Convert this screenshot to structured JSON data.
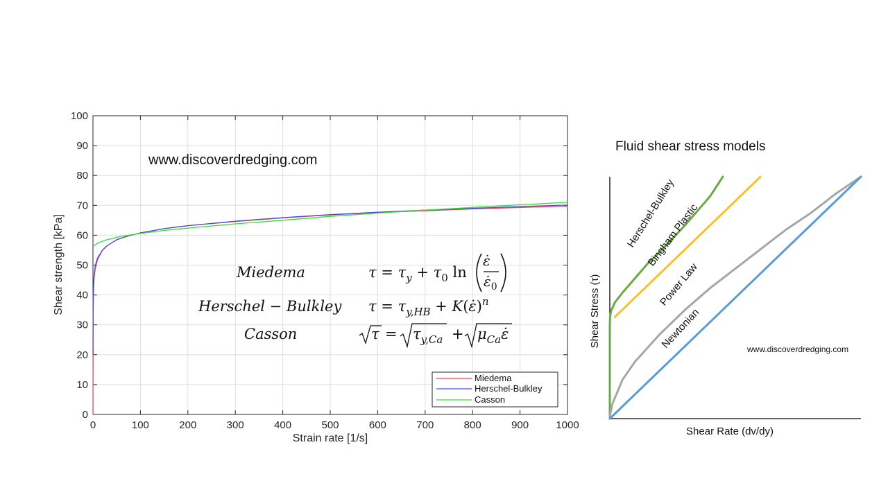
{
  "chart_data": [
    {
      "type": "line",
      "title": "",
      "xlabel": "Strain rate [1/s]",
      "ylabel": "Shear strength [kPa]",
      "xlim": [
        0,
        1000
      ],
      "ylim": [
        0,
        100
      ],
      "xticks": [
        0,
        100,
        200,
        300,
        400,
        500,
        600,
        700,
        800,
        900,
        1000
      ],
      "yticks": [
        0,
        10,
        20,
        30,
        40,
        50,
        60,
        70,
        80,
        90,
        100
      ],
      "grid": true,
      "legend": "bottom-right",
      "watermark": "www.discoverdredging.com",
      "equations": [
        {
          "name": "Miedema"
        },
        {
          "name": "Herschel − Bulkley"
        },
        {
          "name": "Casson"
        }
      ],
      "series": [
        {
          "name": "Miedema",
          "color": "#e8464b",
          "x": [
            0,
            0.5,
            1,
            2,
            5,
            10,
            20,
            30,
            50,
            75,
            100,
            150,
            200,
            300,
            400,
            500,
            600,
            700,
            800,
            900,
            1000
          ],
          "y": [
            0,
            34,
            40,
            45,
            49,
            52,
            55,
            56.5,
            58.5,
            59.8,
            60.8,
            62.2,
            63.2,
            64.6,
            65.8,
            66.8,
            67.6,
            68.2,
            68.8,
            69.3,
            69.7
          ]
        },
        {
          "name": "Herschel-Bulkley",
          "color": "#4b4be0",
          "x": [
            0,
            0.5,
            1,
            2,
            5,
            10,
            20,
            30,
            50,
            75,
            100,
            150,
            200,
            300,
            400,
            500,
            600,
            700,
            800,
            900,
            1000
          ],
          "y": [
            20,
            38,
            42,
            46,
            50,
            52.5,
            55,
            56.5,
            58.5,
            59.8,
            60.8,
            62.2,
            63.2,
            64.7,
            65.9,
            66.9,
            67.7,
            68.4,
            69.0,
            69.6,
            70.1
          ]
        },
        {
          "name": "Casson",
          "color": "#33dd33",
          "x": [
            0,
            10,
            25,
            50,
            75,
            100,
            150,
            200,
            300,
            400,
            500,
            600,
            700,
            800,
            900,
            1000
          ],
          "y": [
            56.3,
            57.3,
            58.3,
            59.3,
            60.0,
            60.6,
            61.6,
            62.4,
            63.8,
            65.0,
            66.3,
            67.4,
            68.4,
            69.3,
            70.2,
            71.0
          ]
        }
      ]
    },
    {
      "type": "line",
      "title": "Fluid shear stress models",
      "xlabel": "Shear Rate (dv/dy)",
      "ylabel": "Shear Stress (τ)",
      "watermark": "www.discoverdredging.com",
      "xlim": [
        0,
        1
      ],
      "ylim": [
        0,
        1
      ],
      "series": [
        {
          "name": "Herschel-Bulkley",
          "color": "#6aaa46",
          "x": [
            0,
            0.0001,
            0.001,
            0.005,
            0.02,
            0.05,
            0.1,
            0.15,
            0.2,
            0.3,
            0.4,
            0.45
          ],
          "y": [
            0,
            0.38,
            0.42,
            0.445,
            0.48,
            0.52,
            0.58,
            0.64,
            0.69,
            0.8,
            0.92,
            1.0
          ]
        },
        {
          "name": "Bingham Plastic",
          "color": "#f6c12b",
          "x": [
            0.02,
            0.6
          ],
          "y": [
            0.42,
            1.0
          ]
        },
        {
          "name": "Power Law",
          "color": "#a6a6a6",
          "x": [
            0,
            0.002,
            0.01,
            0.05,
            0.1,
            0.2,
            0.3,
            0.4,
            0.5,
            0.6,
            0.7,
            0.8,
            0.9,
            1.0
          ],
          "y": [
            0,
            0.02,
            0.06,
            0.16,
            0.235,
            0.35,
            0.45,
            0.54,
            0.62,
            0.7,
            0.78,
            0.85,
            0.93,
            1.0
          ]
        },
        {
          "name": "Newtonian",
          "color": "#5a9bd5",
          "x": [
            0,
            1
          ],
          "y": [
            0,
            1
          ]
        }
      ]
    }
  ]
}
